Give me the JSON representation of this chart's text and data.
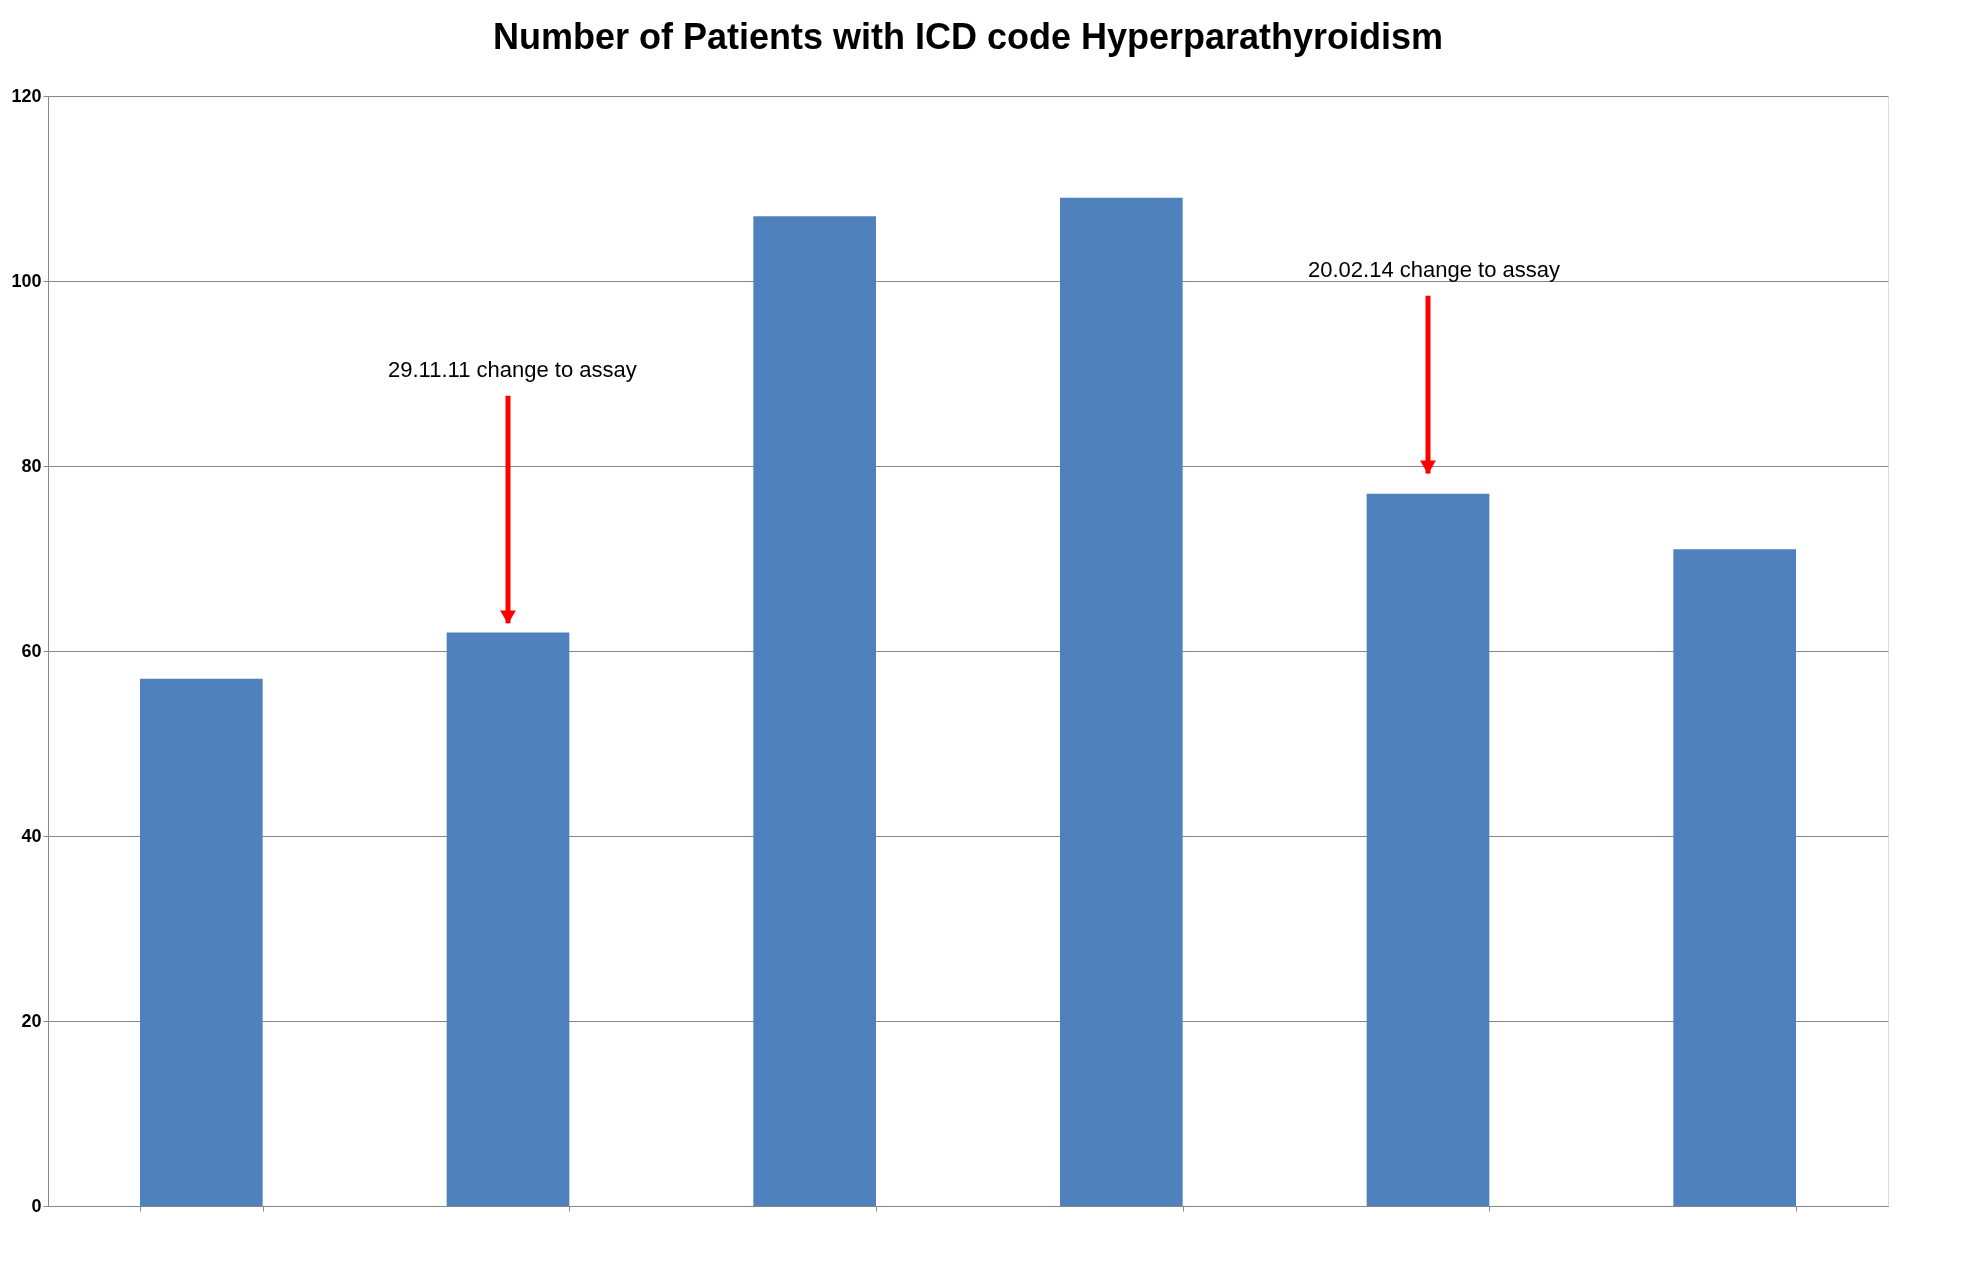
{
  "chart_data": {
    "type": "bar",
    "title": "Number of Patients with ICD code Hyperparathyroidism",
    "categories": [
      null,
      null,
      null,
      null,
      null,
      null
    ],
    "values": [
      57,
      62,
      107,
      109,
      77,
      71
    ],
    "color": "#4f81bd",
    "ylim": [
      0,
      120
    ],
    "yticks": [
      0,
      20,
      40,
      60,
      80,
      100,
      120
    ],
    "grid": "y",
    "tick_labels": "y",
    "annotations": [
      "29.11.11 change to assay",
      "20.02.14 change to assay"
    ]
  }
}
